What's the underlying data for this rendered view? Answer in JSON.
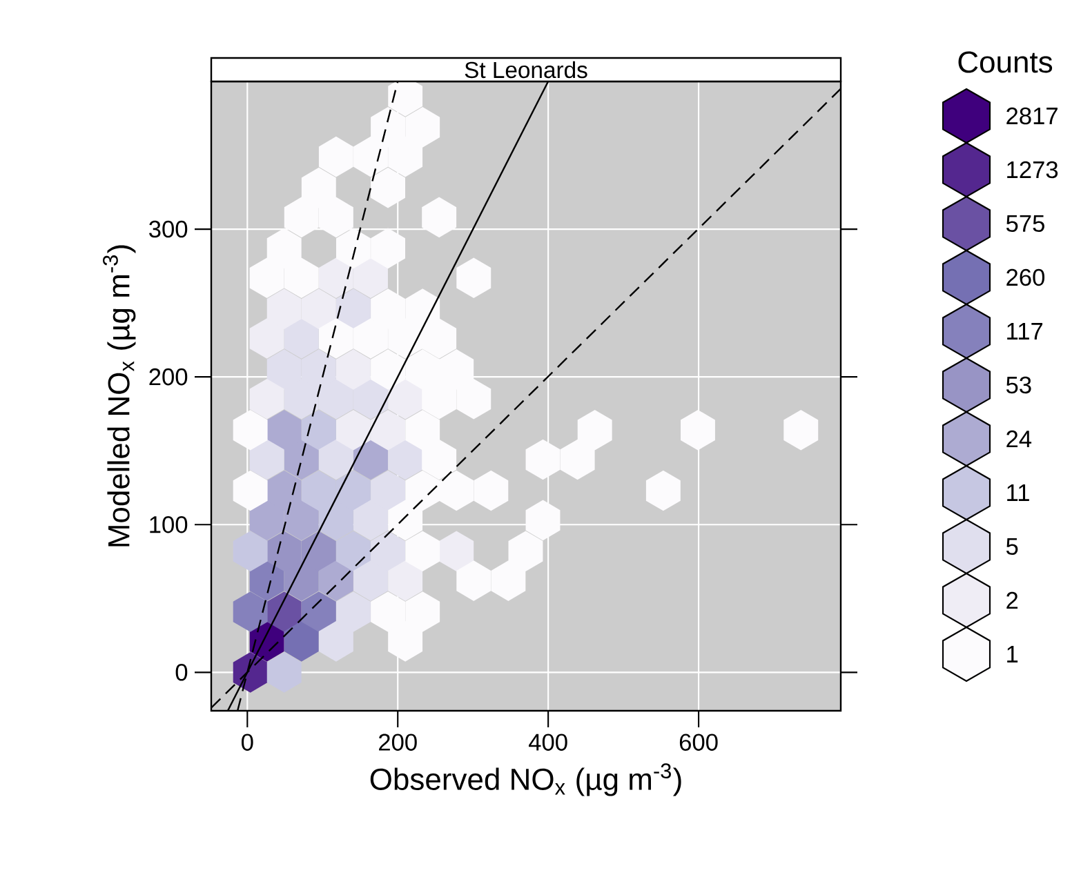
{
  "chart_data": {
    "type": "scatter",
    "title": "St Leonards",
    "xlabel": "Observed NO$_{x}$ (µg m$^{-3}$)",
    "ylabel": "Modelled NO$_{x}$ (µg m$^{-3}$)",
    "legend_title": "Counts",
    "legend": "right",
    "xlim": [
      -48,
      789
    ],
    "ylim": [
      -26,
      400
    ],
    "xticks": [
      0,
      200,
      400,
      600
    ],
    "yticks": [
      0,
      100,
      200,
      300
    ],
    "grid": true,
    "series": [
      {
        "name": "2817",
        "color": "#3f007d",
        "x": [
          26
        ],
        "values": [
          21
        ]
      },
      {
        "name": "1273",
        "color": "#54278f",
        "x": [
          4
        ],
        "values": [
          0
        ]
      },
      {
        "name": "575",
        "color": "#6a51a3",
        "x": [
          49
        ],
        "values": [
          41
        ]
      },
      {
        "name": "260",
        "color": "#7570b3",
        "x": [
          72
        ],
        "values": [
          21
        ]
      },
      {
        "name": "117",
        "color": "#8581bc",
        "x": [
          4,
          95,
          26
        ],
        "values": [
          41,
          41,
          62
        ]
      },
      {
        "name": "53",
        "color": "#9894c5",
        "x": [
          72,
          49,
          95
        ],
        "values": [
          62,
          82,
          82
        ]
      },
      {
        "name": "24",
        "color": "#adabd2",
        "x": [
          118,
          26,
          72,
          49,
          72,
          164,
          49
        ],
        "values": [
          62,
          103,
          103,
          123,
          144,
          144,
          164
        ]
      },
      {
        "name": "11",
        "color": "#c6c7e2",
        "x": [
          49,
          4,
          141,
          118,
          95,
          141,
          95
        ],
        "values": [
          0,
          82,
          82,
          103,
          123,
          123,
          164
        ]
      },
      {
        "name": "5",
        "color": "#e0dfee",
        "x": [
          118,
          141,
          164,
          187,
          164,
          187,
          26,
          118,
          210,
          72,
          118,
          164,
          49,
          95,
          72,
          141
        ],
        "values": [
          21,
          41,
          62,
          82,
          103,
          123,
          144,
          144,
          144,
          185,
          185,
          185,
          205,
          205,
          226,
          246
        ]
      },
      {
        "name": "2",
        "color": "#efedf5",
        "x": [
          210,
          278,
          141,
          187,
          26,
          210,
          141,
          26,
          49,
          95,
          118,
          164
        ],
        "values": [
          62,
          82,
          164,
          164,
          185,
          185,
          205,
          226,
          246,
          246,
          267,
          267
        ]
      },
      {
        "name": "1",
        "color": "#fcfbfd",
        "x": [
          210,
          187,
          233,
          301,
          347,
          233,
          370,
          210,
          393,
          4,
          233,
          278,
          324,
          553,
          255,
          393,
          439,
          4,
          233,
          462,
          599,
          736,
          255,
          301,
          187,
          233,
          278,
          118,
          164,
          210,
          255,
          187,
          233,
          26,
          72,
          301,
          49,
          141,
          187,
          72,
          118,
          255,
          95,
          187,
          118,
          164,
          210,
          187,
          233,
          210
        ],
        "values": [
          21,
          41,
          41,
          62,
          62,
          82,
          82,
          103,
          103,
          123,
          123,
          123,
          123,
          123,
          144,
          144,
          144,
          164,
          164,
          164,
          164,
          164,
          185,
          185,
          205,
          205,
          205,
          226,
          226,
          226,
          226,
          246,
          246,
          267,
          267,
          267,
          287,
          287,
          287,
          308,
          308,
          308,
          328,
          328,
          349,
          349,
          349,
          369,
          369,
          390
        ]
      },
      {
        "type": "line",
        "line_style": "solid",
        "x": [
          -26,
          400
        ],
        "values": [
          -26,
          400
        ]
      },
      {
        "type": "line",
        "line_style": "dashed",
        "x": [
          -13,
          200
        ],
        "values": [
          -26,
          400
        ]
      },
      {
        "type": "line",
        "line_style": "dashed",
        "x": [
          -48,
          789
        ],
        "values": [
          -24,
          395
        ]
      }
    ]
  }
}
